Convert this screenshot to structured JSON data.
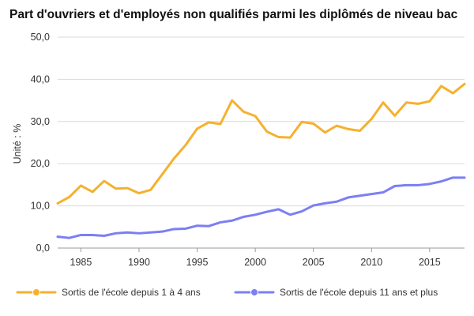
{
  "chart_data": {
    "type": "line",
    "title": "Part d'ouvriers et d'employés non qualifiés parmi les diplômés de niveau bac",
    "ylabel": "Unité : %",
    "xlabel": "",
    "xlim": [
      1983,
      2018
    ],
    "ylim": [
      0,
      50
    ],
    "grid": true,
    "legend": "bottom",
    "x": [
      1983,
      1984,
      1985,
      1986,
      1987,
      1988,
      1989,
      1990,
      1991,
      1992,
      1993,
      1994,
      1995,
      1996,
      1997,
      1998,
      1999,
      2000,
      2001,
      2002,
      2003,
      2004,
      2005,
      2006,
      2007,
      2008,
      2009,
      2010,
      2011,
      2012,
      2013,
      2014,
      2015,
      2016,
      2017,
      2018
    ],
    "x_ticks": [
      1985,
      1990,
      1995,
      2000,
      2005,
      2010,
      2015
    ],
    "x_tick_labels": [
      "1985",
      "1990",
      "1995",
      "2000",
      "2005",
      "2010",
      "2015"
    ],
    "y_ticks": [
      0,
      10,
      20,
      30,
      40,
      50
    ],
    "y_tick_labels": [
      "0,0",
      "10,0",
      "20,0",
      "30,0",
      "40,0",
      "50,0"
    ],
    "series": [
      {
        "name": "Sortis de l'école depuis 1 à 4 ans",
        "color": "#f5b12e",
        "values": [
          10.6,
          12.1,
          14.8,
          13.3,
          15.9,
          14.1,
          14.2,
          13.0,
          13.8,
          17.5,
          21.2,
          24.4,
          28.3,
          29.8,
          29.4,
          35.0,
          32.3,
          31.3,
          27.6,
          26.3,
          26.2,
          29.9,
          29.5,
          27.4,
          29.0,
          28.2,
          27.8,
          30.6,
          34.5,
          31.4,
          34.5,
          34.2,
          34.8,
          38.4,
          36.7,
          38.9
        ]
      },
      {
        "name": "Sortis de l'école depuis 11 ans et plus",
        "color": "#7b7ff3",
        "values": [
          2.7,
          2.4,
          3.1,
          3.1,
          2.9,
          3.5,
          3.7,
          3.5,
          3.7,
          3.9,
          4.5,
          4.6,
          5.3,
          5.2,
          6.1,
          6.5,
          7.4,
          7.9,
          8.6,
          9.2,
          7.9,
          8.7,
          10.1,
          10.6,
          11.0,
          12.0,
          12.4,
          12.8,
          13.2,
          14.7,
          14.9,
          14.9,
          15.2,
          15.8,
          16.7,
          16.7
        ]
      }
    ]
  }
}
